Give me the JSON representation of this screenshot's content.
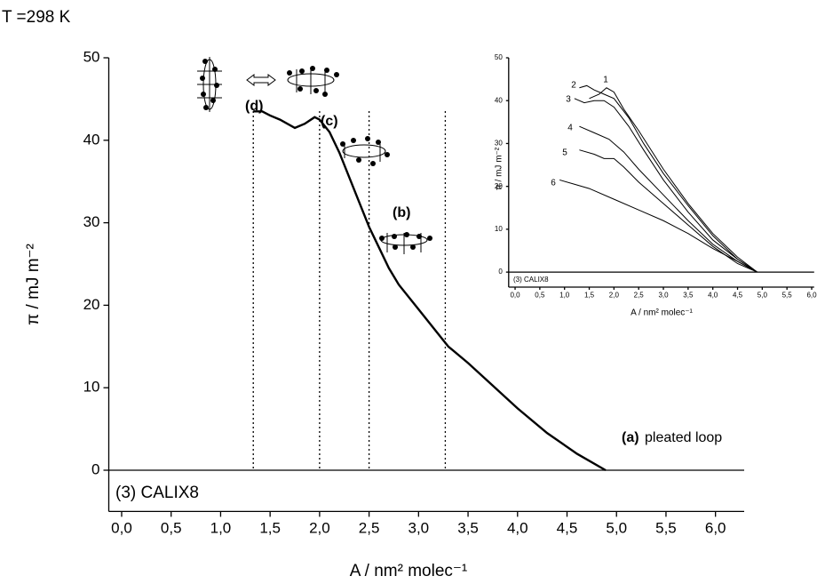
{
  "chart_data": [
    {
      "type": "line",
      "title": "T =298 K",
      "subtitle": "(3) CALIX8",
      "x_label": "A / nm² molec⁻¹",
      "y_label": "π / mJ m⁻²",
      "x": [
        1.33,
        1.42,
        1.5,
        1.6,
        1.75,
        1.85,
        1.95,
        2.0,
        2.1,
        2.2,
        2.3,
        2.4,
        2.5,
        2.6,
        2.7,
        2.8,
        3.0,
        3.2,
        3.3,
        3.5,
        3.7,
        4.0,
        4.3,
        4.6,
        4.89
      ],
      "values": [
        43.5,
        43.5,
        43.0,
        42.5,
        41.5,
        42.0,
        42.8,
        42.5,
        41.0,
        38.5,
        35.5,
        32.5,
        29.5,
        27.0,
        24.5,
        22.5,
        19.5,
        16.5,
        15.0,
        13.0,
        10.8,
        7.5,
        4.5,
        2.0,
        0
      ],
      "color": "#000000",
      "reference_lines": [
        1.33,
        2.0,
        2.5,
        3.27
      ],
      "annotations": [
        "(d)",
        "(c)",
        "(b)",
        "(a)",
        " pleated loop"
      ],
      "xlim": [
        -0.13,
        6.29
      ],
      "ylim": [
        -5,
        50
      ],
      "xticks": [
        {
          "value": 0,
          "label": "0,0"
        },
        {
          "value": 0.5,
          "label": "0,5"
        },
        {
          "value": 1,
          "label": "1,0"
        },
        {
          "value": 1.5,
          "label": "1,5"
        },
        {
          "value": 2,
          "label": "2,0"
        },
        {
          "value": 2.5,
          "label": "2,5"
        },
        {
          "value": 3,
          "label": "3,0"
        },
        {
          "value": 3.5,
          "label": "3,5"
        },
        {
          "value": 4,
          "label": "4,0"
        },
        {
          "value": 4.5,
          "label": "4,5"
        },
        {
          "value": 5,
          "label": "5,0"
        },
        {
          "value": 5.5,
          "label": "5,5"
        },
        {
          "value": 6,
          "label": "6,0"
        }
      ],
      "yticks": [
        0,
        10,
        20,
        30,
        40,
        50
      ]
    },
    {
      "type": "line",
      "subtitle": "(3) CALIX8",
      "x_label": "A / nm² molec⁻¹",
      "y_label": "π / mJ m⁻²",
      "series": [
        {
          "name": "1",
          "color": "#000000",
          "x": [
            1.5,
            1.7,
            1.85,
            2.0,
            2.2,
            2.5,
            3.0,
            3.5,
            4.0,
            4.5,
            4.9
          ],
          "values": [
            40.5,
            41.5,
            43,
            42,
            38,
            33,
            24,
            16,
            9,
            3.5,
            0
          ]
        },
        {
          "name": "2",
          "color": "#000000",
          "x": [
            1.3,
            1.45,
            1.6,
            1.8,
            2.0,
            2.3,
            2.6,
            3.0,
            3.5,
            4.0,
            4.5,
            4.9
          ],
          "values": [
            43,
            43.5,
            42.5,
            41.5,
            40.5,
            36,
            30,
            23,
            15.5,
            8.5,
            3,
            0
          ]
        },
        {
          "name": "3",
          "color": "#000000",
          "x": [
            1.2,
            1.4,
            1.6,
            1.8,
            2.0,
            2.3,
            2.6,
            3.0,
            3.5,
            4.0,
            4.5,
            4.9
          ],
          "values": [
            40.5,
            39.5,
            40,
            40,
            38.5,
            34,
            28.5,
            21.5,
            14,
            7.5,
            3,
            0
          ]
        },
        {
          "name": "4",
          "color": "#000000",
          "x": [
            1.3,
            1.6,
            1.9,
            2.2,
            2.5,
            3.0,
            3.5,
            4.0,
            4.5,
            4.9
          ],
          "values": [
            34,
            32.5,
            31,
            28,
            24,
            18,
            12,
            6.5,
            2.5,
            0
          ]
        },
        {
          "name": "5",
          "color": "#000000",
          "x": [
            1.3,
            1.6,
            1.8,
            2.0,
            2.2,
            2.5,
            3.0,
            3.5,
            4.0,
            4.5,
            4.9
          ],
          "values": [
            28.5,
            27.5,
            26.5,
            26.5,
            24.5,
            21,
            16,
            11,
            6,
            2,
            0
          ]
        },
        {
          "name": "6",
          "color": "#000000",
          "x": [
            0.9,
            1.2,
            1.5,
            2.0,
            2.5,
            3.0,
            3.5,
            4.0,
            4.5,
            4.9
          ],
          "values": [
            21.5,
            20.5,
            19.5,
            17,
            14.5,
            12,
            9,
            5.5,
            2.5,
            0
          ]
        }
      ],
      "xlim": [
        -0.13,
        6.05
      ],
      "ylim": [
        -3.5,
        50
      ],
      "xticks": [
        {
          "value": 0,
          "label": "0,0"
        },
        {
          "value": 0.5,
          "label": "0,5"
        },
        {
          "value": 1,
          "label": "1,0"
        },
        {
          "value": 1.5,
          "label": "1,5"
        },
        {
          "value": 2,
          "label": "2,0"
        },
        {
          "value": 2.5,
          "label": "2,5"
        },
        {
          "value": 3,
          "label": "3,0"
        },
        {
          "value": 3.5,
          "label": "3,5"
        },
        {
          "value": 4,
          "label": "4,0"
        },
        {
          "value": 4.5,
          "label": "4,5"
        },
        {
          "value": 5,
          "label": "5,0"
        },
        {
          "value": 5.5,
          "label": "5,5"
        },
        {
          "value": 6,
          "label": "6,0"
        }
      ],
      "yticks": [
        0,
        10,
        20,
        30,
        40,
        50
      ]
    }
  ]
}
